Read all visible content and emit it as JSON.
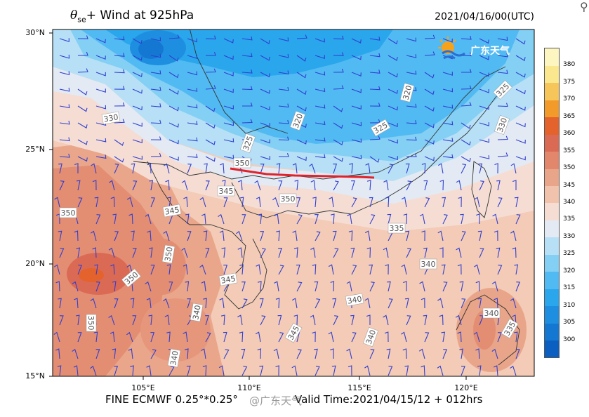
{
  "title": {
    "symbol": "θ",
    "subscript": "se",
    "text": "+ Wind at 925hPa",
    "valid_datetime": "2021/04/16/00(UTC)"
  },
  "axes": {
    "lat_labels": [
      "30°N",
      "25°N",
      "20°N",
      "15°N"
    ],
    "lon_labels": [
      "105°E",
      "110°E",
      "115°E",
      "120°E"
    ]
  },
  "footer": {
    "model": "FINE ECMWF 0.25°*0.25°",
    "valid_time": "Valid Time:2021/04/15/12 + 012hrs",
    "watermark": "@广东天气"
  },
  "brand": {
    "logo_text": "广东天气",
    "logo_icon": "sun-cloud-icon"
  },
  "colorbar": {
    "levels": [
      "300",
      "305",
      "310",
      "315",
      "320",
      "325",
      "330",
      "335",
      "340",
      "345",
      "350",
      "355",
      "360",
      "365",
      "370",
      "375",
      "380"
    ],
    "colors": [
      "#0a5fc0",
      "#1478d2",
      "#1e8fe0",
      "#2aa6ec",
      "#52baf2",
      "#84cff4",
      "#b7e0f6",
      "#e3eaf3",
      "#f6ddd3",
      "#f2c3ac",
      "#e9a589",
      "#e2866c",
      "#db6a55",
      "#e4622c",
      "#f29a2a",
      "#f7c65a",
      "#fbe88e",
      "#fdf6c0"
    ]
  },
  "contour_labels": [
    "330",
    "320",
    "325",
    "320",
    "325",
    "325",
    "330",
    "335",
    "340",
    "350",
    "345",
    "350",
    "350",
    "350",
    "345",
    "340",
    "345",
    "335",
    "340",
    "340",
    "340",
    "350",
    "345",
    "350",
    "340"
  ]
}
